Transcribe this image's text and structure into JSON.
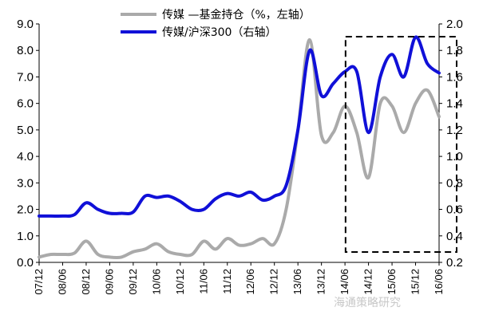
{
  "chart_data": {
    "type": "line",
    "x": [
      "07/12",
      "08/03",
      "08/06",
      "08/09",
      "08/12",
      "09/03",
      "09/06",
      "09/09",
      "09/12",
      "10/03",
      "10/06",
      "10/09",
      "10/12",
      "11/03",
      "11/06",
      "11/09",
      "11/12",
      "12/03",
      "12/06",
      "12/09",
      "12/12",
      "13/03",
      "13/06",
      "13/09",
      "13/12",
      "14/03",
      "14/06",
      "14/09",
      "14/12",
      "15/03",
      "15/06",
      "15/09",
      "15/12",
      "16/03",
      "16/06"
    ],
    "x_tick_labels": [
      "07/12",
      "08/06",
      "08/12",
      "09/06",
      "09/12",
      "10/06",
      "10/12",
      "11/06",
      "11/12",
      "12/06",
      "12/12",
      "13/06",
      "13/12",
      "14/06",
      "14/12",
      "15/06",
      "15/12",
      "16/06"
    ],
    "series": [
      {
        "name": "传媒 —基金持仓（%，左轴）",
        "axis": "left",
        "color": "#aaaaaa",
        "values": [
          0.2,
          0.3,
          0.3,
          0.35,
          0.8,
          0.3,
          0.2,
          0.2,
          0.4,
          0.5,
          0.7,
          0.4,
          0.3,
          0.3,
          0.8,
          0.5,
          0.9,
          0.65,
          0.7,
          0.9,
          0.7,
          2.0,
          5.0,
          8.4,
          4.8,
          4.9,
          5.9,
          4.9,
          3.2,
          6.0,
          5.9,
          4.9,
          6.0,
          6.5,
          5.5
        ]
      },
      {
        "name": "传媒/沪深300（右轴）",
        "axis": "right",
        "color": "#1010d8",
        "values": [
          0.55,
          0.55,
          0.55,
          0.56,
          0.65,
          0.6,
          0.57,
          0.57,
          0.58,
          0.7,
          0.69,
          0.7,
          0.66,
          0.6,
          0.6,
          0.68,
          0.72,
          0.7,
          0.73,
          0.67,
          0.7,
          0.78,
          1.2,
          1.8,
          1.46,
          1.55,
          1.64,
          1.64,
          1.18,
          1.6,
          1.77,
          1.6,
          1.9,
          1.7,
          1.63
        ]
      }
    ],
    "y_left": {
      "ylim": [
        0,
        9
      ],
      "ticks": [
        "0.0",
        "1.0",
        "2.0",
        "3.0",
        "4.0",
        "5.0",
        "6.0",
        "7.0",
        "8.0",
        "9.0"
      ]
    },
    "y_right": {
      "ylim": [
        0.2,
        2.0
      ],
      "ticks": [
        "0.2",
        "0.4",
        "0.6",
        "0.8",
        "1.0",
        "1.2",
        "1.4",
        "1.6",
        "1.8",
        "2.0"
      ]
    },
    "annotation": {
      "type": "dashed-box",
      "x_start": "14/09",
      "x_end": "16/06"
    },
    "legend_position": "top",
    "grid": false
  },
  "watermark": "海通策略研究"
}
